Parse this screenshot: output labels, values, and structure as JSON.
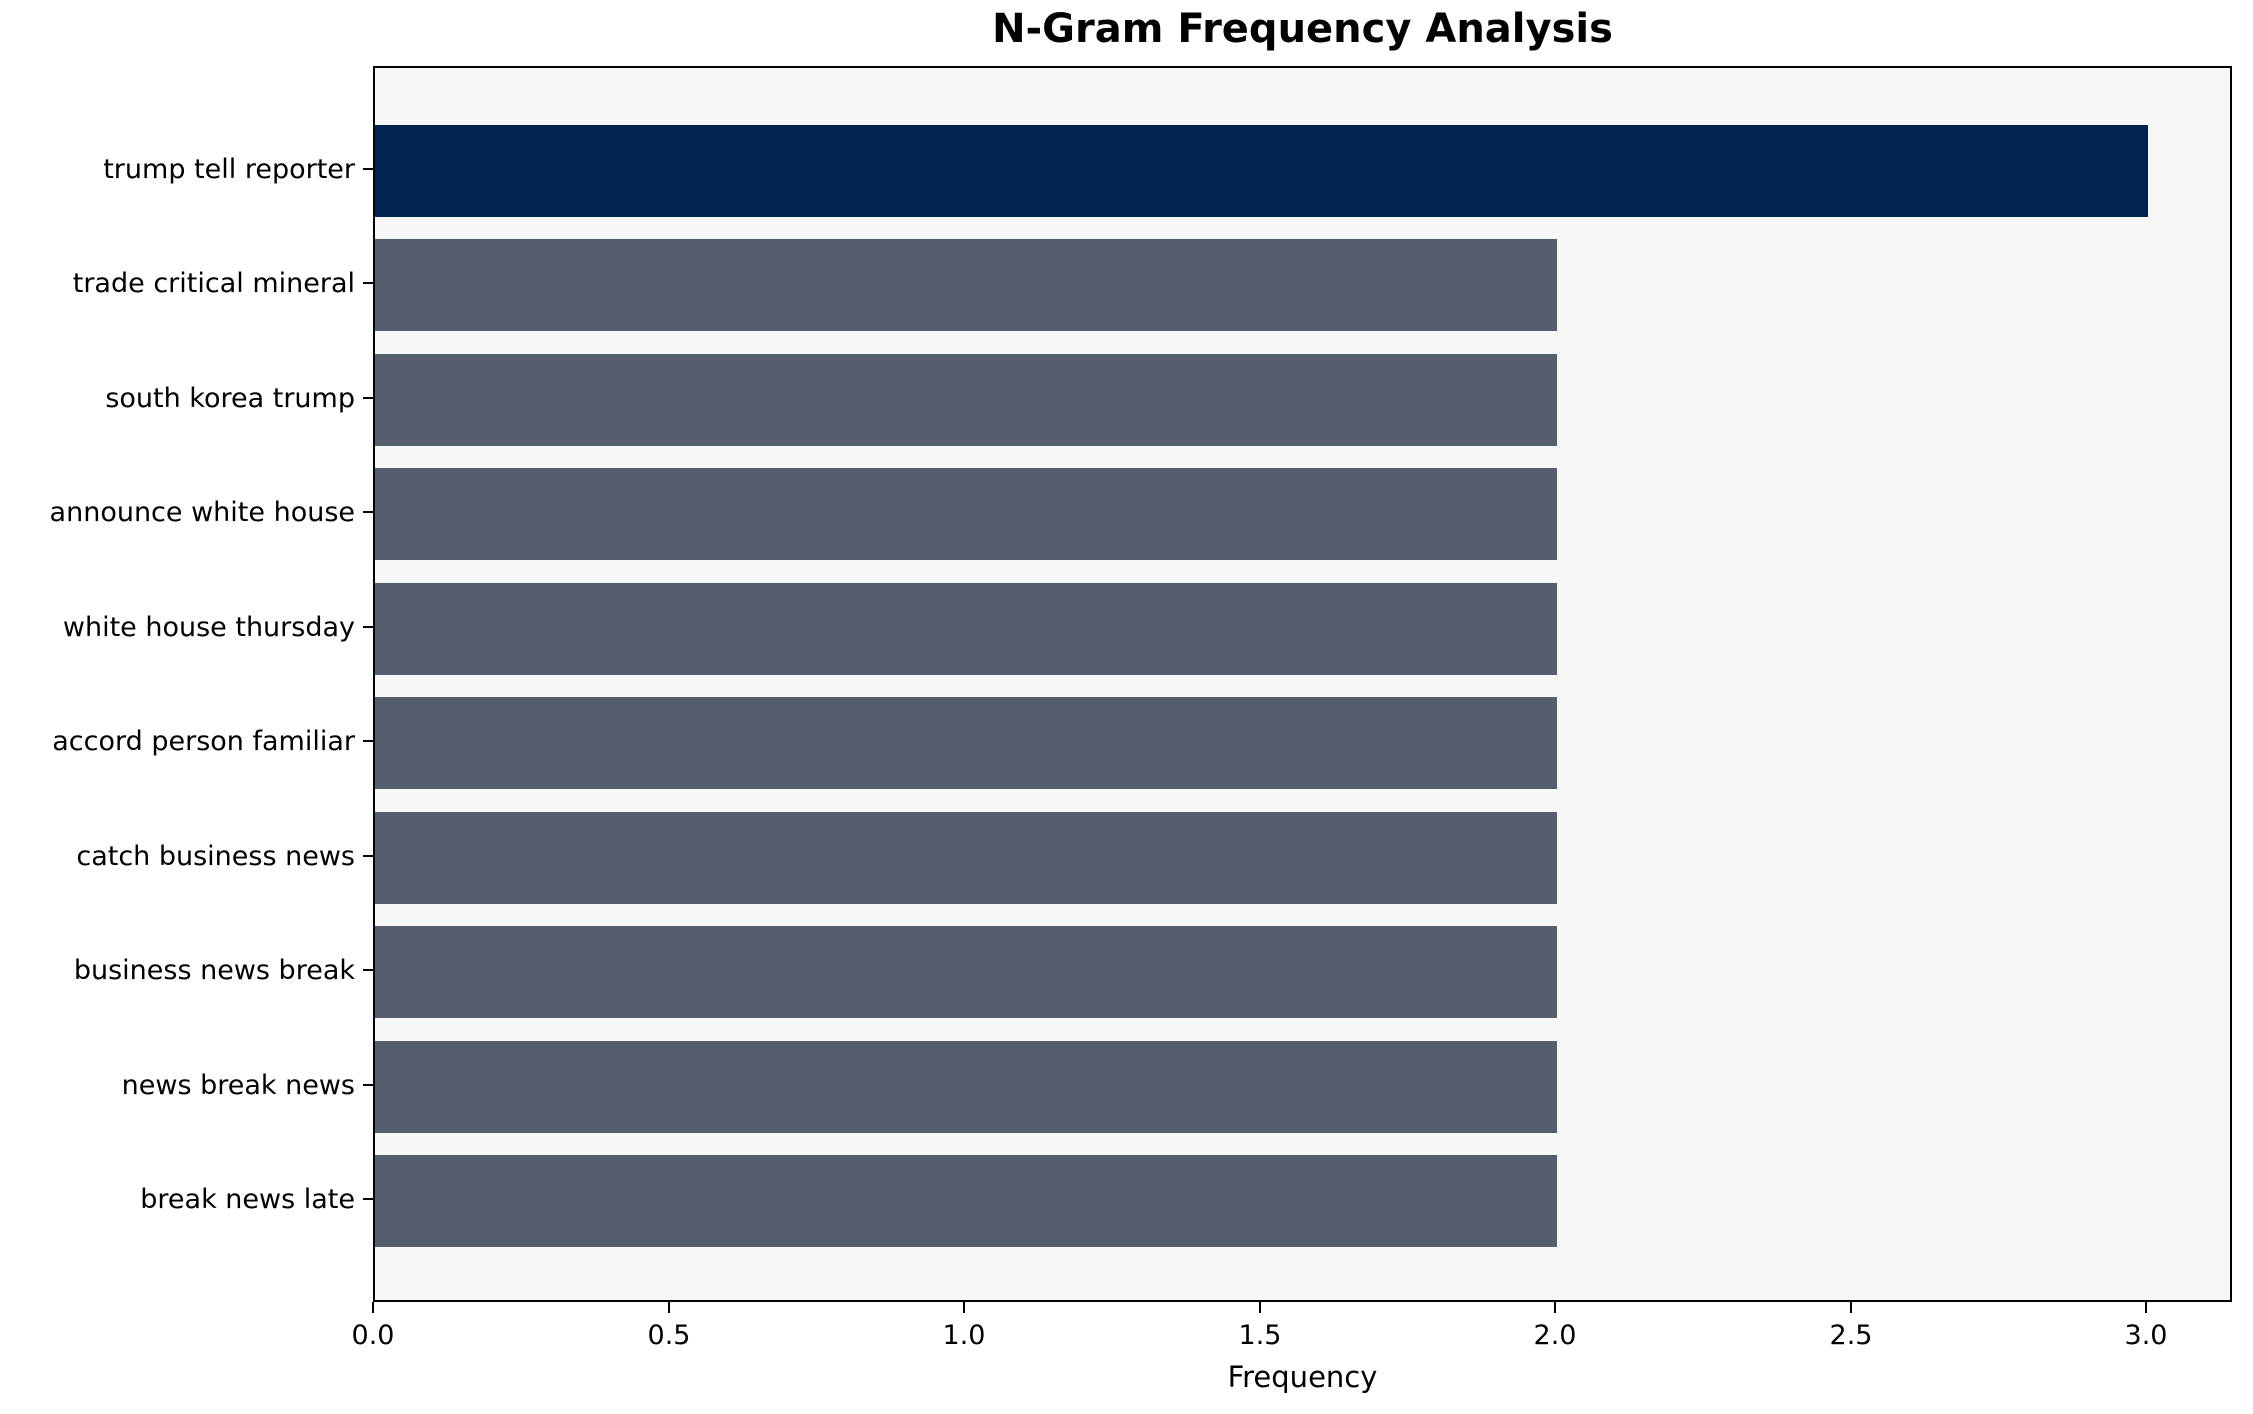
{
  "chart_data": {
    "type": "bar",
    "orientation": "horizontal",
    "title": "N-Gram Frequency Analysis",
    "xlabel": "Frequency",
    "ylabel": "",
    "categories": [
      "trump tell reporter",
      "trade critical mineral",
      "south korea trump",
      "announce white house",
      "white house thursday",
      "accord person familiar",
      "catch business news",
      "business news break",
      "news break news",
      "break news late"
    ],
    "values": [
      3,
      2,
      2,
      2,
      2,
      2,
      2,
      2,
      2,
      2
    ],
    "x_tick_labels": [
      "0.0",
      "0.5",
      "1.0",
      "1.5",
      "2.0",
      "2.5",
      "3.0"
    ],
    "x_tick_values": [
      0.0,
      0.5,
      1.0,
      1.5,
      2.0,
      2.5,
      3.0
    ],
    "xlim": [
      0,
      3.145
    ],
    "grid": false,
    "legend": false,
    "colors": {
      "highlight_bar": "#01234e",
      "default_bar": "#565d6d",
      "plot_background": "#f7f7f7",
      "figure_background": "#ffffff",
      "spine": "#000000",
      "text": "#000000"
    }
  }
}
